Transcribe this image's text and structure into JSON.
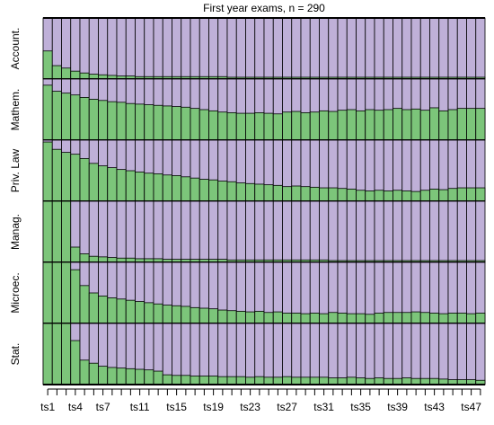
{
  "chart_data": {
    "type": "bar",
    "title": "First year exams, n = 290",
    "categories": [
      "ts1",
      null,
      null,
      "ts4",
      null,
      null,
      "ts7",
      null,
      null,
      null,
      "ts11",
      null,
      null,
      null,
      "ts15",
      null,
      null,
      null,
      "ts19",
      null,
      null,
      null,
      "ts23",
      null,
      null,
      null,
      "ts27",
      null,
      null,
      null,
      "ts31",
      null,
      null,
      null,
      "ts35",
      null,
      null,
      null,
      "ts39",
      null,
      null,
      null,
      "ts43",
      null,
      null,
      null,
      "ts47",
      null
    ],
    "color": "#7cc57a",
    "background_color": "#bfb0d8",
    "ylim": [
      0,
      1
    ],
    "series": [
      {
        "name": "Account.",
        "values": [
          0.46,
          0.22,
          0.18,
          0.13,
          0.1,
          0.08,
          0.07,
          0.06,
          0.05,
          0.05,
          0.04,
          0.04,
          0.04,
          0.04,
          0.04,
          0.04,
          0.04,
          0.04,
          0.04,
          0.04,
          0.03,
          0.03,
          0.03,
          0.03,
          0.03,
          0.03,
          0.03,
          0.03,
          0.03,
          0.03,
          0.03,
          0.03,
          0.03,
          0.03,
          0.03,
          0.03,
          0.03,
          0.03,
          0.03,
          0.03,
          0.03,
          0.03,
          0.03,
          0.03,
          0.03,
          0.03,
          0.03,
          0.03
        ]
      },
      {
        "name": "Mathem.",
        "values": [
          0.9,
          0.8,
          0.77,
          0.74,
          0.7,
          0.67,
          0.65,
          0.63,
          0.62,
          0.6,
          0.59,
          0.58,
          0.57,
          0.56,
          0.55,
          0.54,
          0.52,
          0.5,
          0.48,
          0.46,
          0.45,
          0.44,
          0.44,
          0.45,
          0.44,
          0.43,
          0.46,
          0.47,
          0.45,
          0.46,
          0.48,
          0.47,
          0.49,
          0.5,
          0.48,
          0.5,
          0.49,
          0.5,
          0.52,
          0.5,
          0.51,
          0.49,
          0.53,
          0.48,
          0.5,
          0.52,
          0.52,
          0.52
        ]
      },
      {
        "name": "Priv. Law",
        "values": [
          0.97,
          0.85,
          0.8,
          0.77,
          0.7,
          0.62,
          0.58,
          0.55,
          0.52,
          0.5,
          0.48,
          0.46,
          0.45,
          0.43,
          0.42,
          0.4,
          0.38,
          0.36,
          0.35,
          0.33,
          0.32,
          0.3,
          0.29,
          0.28,
          0.27,
          0.26,
          0.24,
          0.25,
          0.24,
          0.23,
          0.22,
          0.22,
          0.21,
          0.2,
          0.18,
          0.17,
          0.18,
          0.17,
          0.18,
          0.17,
          0.16,
          0.18,
          0.2,
          0.19,
          0.21,
          0.22,
          0.22,
          0.22
        ]
      },
      {
        "name": "Manag.",
        "values": [
          1,
          1,
          1,
          0.25,
          0.14,
          0.1,
          0.09,
          0.08,
          0.07,
          0.07,
          0.06,
          0.06,
          0.06,
          0.05,
          0.05,
          0.05,
          0.05,
          0.05,
          0.05,
          0.05,
          0.04,
          0.04,
          0.04,
          0.04,
          0.04,
          0.04,
          0.04,
          0.04,
          0.04,
          0.04,
          0.04,
          0.03,
          0.03,
          0.03,
          0.03,
          0.03,
          0.03,
          0.03,
          0.03,
          0.03,
          0.03,
          0.03,
          0.03,
          0.03,
          0.03,
          0.03,
          0.03,
          0.03
        ]
      },
      {
        "name": "Microec.",
        "values": [
          1,
          1,
          1,
          0.88,
          0.62,
          0.5,
          0.45,
          0.42,
          0.4,
          0.38,
          0.36,
          0.34,
          0.32,
          0.3,
          0.29,
          0.28,
          0.26,
          0.25,
          0.24,
          0.22,
          0.21,
          0.2,
          0.19,
          0.2,
          0.18,
          0.19,
          0.17,
          0.17,
          0.16,
          0.17,
          0.16,
          0.18,
          0.17,
          0.16,
          0.16,
          0.15,
          0.17,
          0.18,
          0.18,
          0.18,
          0.19,
          0.18,
          0.17,
          0.16,
          0.17,
          0.17,
          0.16,
          0.17
        ]
      },
      {
        "name": "Stat.",
        "values": [
          1,
          1,
          1,
          0.72,
          0.4,
          0.35,
          0.3,
          0.28,
          0.27,
          0.26,
          0.25,
          0.24,
          0.22,
          0.16,
          0.15,
          0.15,
          0.14,
          0.14,
          0.14,
          0.13,
          0.13,
          0.13,
          0.12,
          0.13,
          0.12,
          0.12,
          0.13,
          0.12,
          0.12,
          0.12,
          0.12,
          0.11,
          0.11,
          0.12,
          0.11,
          0.1,
          0.11,
          0.1,
          0.1,
          0.11,
          0.1,
          0.1,
          0.1,
          0.09,
          0.08,
          0.08,
          0.08,
          0.07
        ]
      }
    ]
  }
}
